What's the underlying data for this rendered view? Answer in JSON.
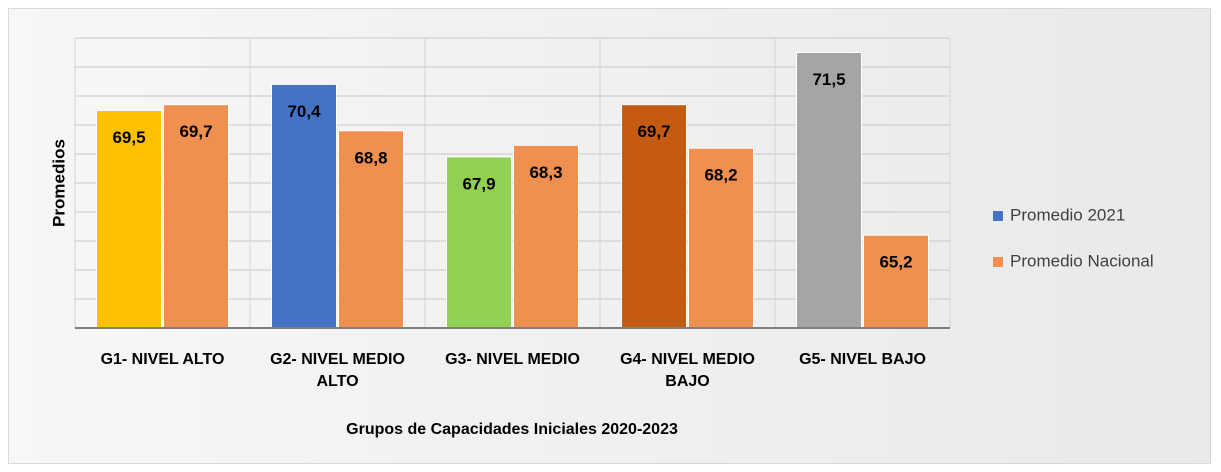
{
  "chart_data": {
    "type": "bar",
    "categories": [
      "G1- NIVEL ALTO",
      "G2- NIVEL MEDIO ALTO",
      "G3- NIVEL MEDIO",
      "G4- NIVEL MEDIO BAJO",
      "G5- NIVEL BAJO"
    ],
    "series": [
      {
        "name": "Promedio 2021",
        "color": "#4472c4",
        "point_colors": [
          "#ffc000",
          "#4472c4",
          "#92d050",
          "#c55a11",
          "#a5a5a5"
        ],
        "values": [
          69.5,
          70.4,
          67.9,
          69.7,
          71.5
        ],
        "value_labels": [
          "69,5",
          "70,4",
          "67,9",
          "69,7",
          "71,5"
        ]
      },
      {
        "name": "Promedio Nacional",
        "color": "#ef8f50",
        "values": [
          69.7,
          68.8,
          68.3,
          68.2,
          65.2
        ],
        "value_labels": [
          "69,7",
          "68,8",
          "68,3",
          "68,2",
          "65,2"
        ]
      }
    ],
    "xlabel": "Grupos de Capacidades Iniciales 2020-2023",
    "ylabel": "Promedios",
    "ylim": [
      62,
      72
    ],
    "yticks": [
      62,
      63,
      64,
      65,
      66,
      67,
      68,
      69,
      70,
      71,
      72
    ],
    "grid": true,
    "legend": "right"
  }
}
